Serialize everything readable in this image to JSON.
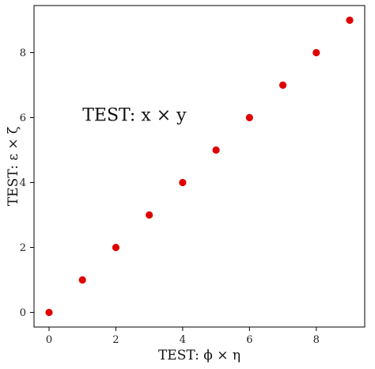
{
  "chart_data": {
    "type": "scatter",
    "x": [
      0,
      1,
      2,
      3,
      4,
      5,
      6,
      7,
      8,
      9
    ],
    "y": [
      0,
      1,
      2,
      3,
      4,
      5,
      6,
      7,
      8,
      9
    ],
    "xlabel": "TEST: ϕ × η",
    "ylabel": "TEST: ε × ζ",
    "annotation": {
      "text": "TEST: x × y",
      "x": 1,
      "y": 6.1
    },
    "xlim": [
      -0.45,
      9.45
    ],
    "ylim": [
      -0.45,
      9.45
    ],
    "xticks": [
      0,
      2,
      4,
      6,
      8
    ],
    "yticks": [
      0,
      2,
      4,
      6,
      8
    ],
    "grid": false,
    "marker_color": "#e00000"
  }
}
